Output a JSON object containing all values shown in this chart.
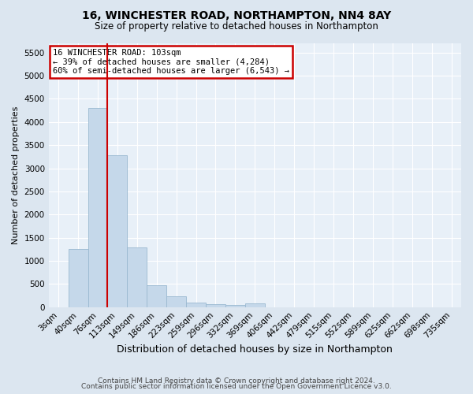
{
  "title1": "16, WINCHESTER ROAD, NORTHAMPTON, NN4 8AY",
  "title2": "Size of property relative to detached houses in Northampton",
  "xlabel": "Distribution of detached houses by size in Northampton",
  "ylabel": "Number of detached properties",
  "bin_labels": [
    "3sqm",
    "40sqm",
    "76sqm",
    "113sqm",
    "149sqm",
    "186sqm",
    "223sqm",
    "259sqm",
    "296sqm",
    "332sqm",
    "369sqm",
    "406sqm",
    "442sqm",
    "479sqm",
    "515sqm",
    "552sqm",
    "589sqm",
    "625sqm",
    "662sqm",
    "698sqm",
    "735sqm"
  ],
  "bar_values": [
    0,
    1260,
    4300,
    3280,
    1290,
    475,
    230,
    100,
    60,
    50,
    80,
    0,
    0,
    0,
    0,
    0,
    0,
    0,
    0,
    0,
    0
  ],
  "bar_color": "#c5d8ea",
  "bar_edgecolor": "#9ab8d0",
  "vline_color": "#cc0000",
  "annotation_text": "16 WINCHESTER ROAD: 103sqm\n← 39% of detached houses are smaller (4,284)\n60% of semi-detached houses are larger (6,543) →",
  "annotation_box_facecolor": "#ffffff",
  "annotation_box_edgecolor": "#cc0000",
  "ylim": [
    0,
    5700
  ],
  "yticks": [
    0,
    500,
    1000,
    1500,
    2000,
    2500,
    3000,
    3500,
    4000,
    4500,
    5000,
    5500
  ],
  "footer1": "Contains HM Land Registry data © Crown copyright and database right 2024.",
  "footer2": "Contains public sector information licensed under the Open Government Licence v3.0.",
  "bg_color": "#dce6f0",
  "plot_bg_color": "#e8f0f8",
  "grid_color": "#ffffff",
  "title1_fontsize": 10,
  "title2_fontsize": 8.5,
  "xlabel_fontsize": 9,
  "ylabel_fontsize": 8,
  "tick_fontsize": 7.5,
  "footer_fontsize": 6.5
}
